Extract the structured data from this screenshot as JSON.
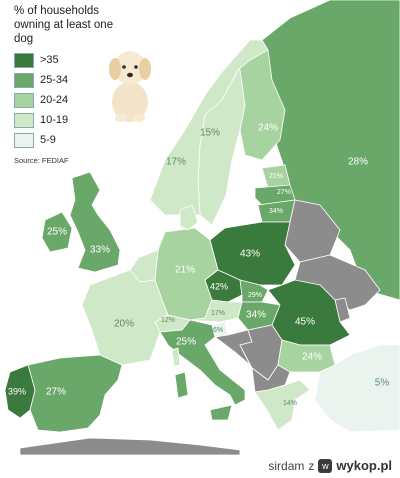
{
  "map": {
    "title": "% of households owning at least one dog",
    "source": "Source: FEDIAF",
    "legend": [
      {
        "label": ">35",
        "color": "#3a7a3c"
      },
      {
        "label": "25-34",
        "color": "#6aa86a"
      },
      {
        "label": "20-24",
        "color": "#a7d3a0"
      },
      {
        "label": "10-19",
        "color": "#cfe8c8"
      },
      {
        "label": "5-9",
        "color": "#eaf3ee"
      }
    ],
    "no_data_color": "#8c8c8c",
    "sea_color": "#ffffff",
    "values": {
      "ireland": "25%",
      "uk": "33%",
      "norway": "17%",
      "sweden": "15%",
      "finland": "24%",
      "russia": "28%",
      "estonia": "21%",
      "latvia": "27%",
      "lithuania": "34%",
      "poland": "43%",
      "germany": "21%",
      "czechia": "42%",
      "slovakia": "29%",
      "austria": "17%",
      "hungary": "34%",
      "romania": "45%",
      "france": "20%",
      "switzerland": "12%",
      "slovenia": "6%",
      "italy": "25%",
      "portugal": "39%",
      "spain": "27%",
      "bulgaria": "24%",
      "greece": "14%",
      "turkey": "5%"
    }
  },
  "footer": {
    "user": "sirdam",
    "separator": "z",
    "site": "wykop.pl"
  }
}
